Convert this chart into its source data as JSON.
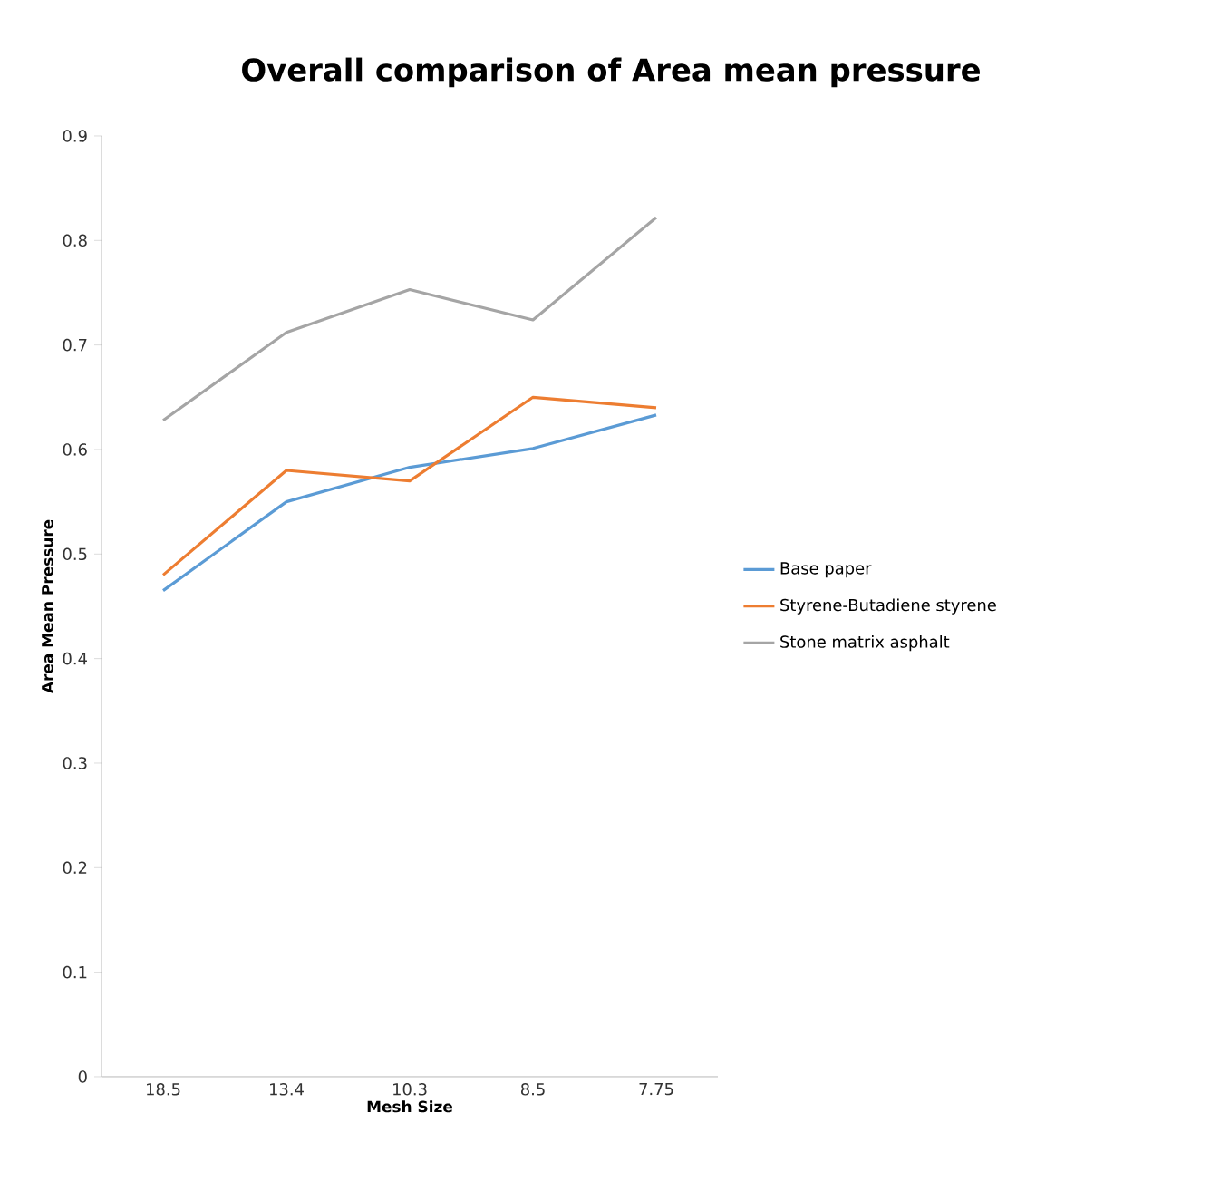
{
  "chart_data": {
    "type": "line",
    "title": "Overall comparison of Area mean pressure",
    "xlabel": "Mesh Size",
    "ylabel": "Area Mean Pressure",
    "categories": [
      "18.5",
      "13.4",
      "10.3",
      "8.5",
      "7.75"
    ],
    "series": [
      {
        "name": "Base paper",
        "color": "#5b9bd5",
        "values": [
          0.465,
          0.55,
          0.583,
          0.601,
          0.633
        ]
      },
      {
        "name": "Styrene-Butadiene styrene",
        "color": "#ed7d31",
        "values": [
          0.48,
          0.58,
          0.57,
          0.65,
          0.64
        ]
      },
      {
        "name": "Stone matrix asphalt",
        "color": "#a5a5a5",
        "values": [
          0.628,
          0.712,
          0.753,
          0.724,
          0.822
        ]
      }
    ],
    "ylim": [
      0,
      0.9
    ],
    "yticks": [
      0,
      0.1,
      0.2,
      0.3,
      0.4,
      0.5,
      0.6,
      0.7,
      0.8,
      0.9
    ],
    "grid": false,
    "legend": "right",
    "marker": "none",
    "line_style": "solid"
  }
}
